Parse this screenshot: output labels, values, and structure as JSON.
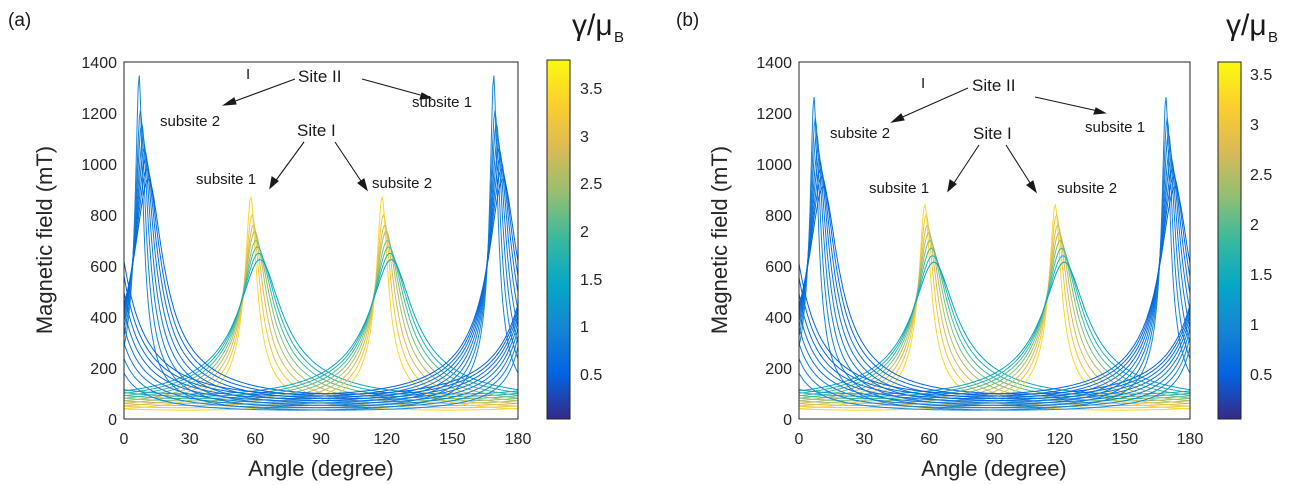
{
  "chart_data": [
    {
      "type": "line",
      "panel_label": "(a)",
      "xlabel": "Angle (degree)",
      "ylabel": "Magnetic field (mT)",
      "xlim": [
        0,
        180
      ],
      "ylim": [
        0,
        1400
      ],
      "xticks": [
        0,
        30,
        60,
        90,
        120,
        150,
        180
      ],
      "yticks": [
        0,
        200,
        400,
        600,
        800,
        1000,
        1200,
        1400
      ],
      "colorbar": {
        "title": "γ/μ",
        "subscript": "B",
        "range": [
          0.05,
          3.8
        ],
        "ticks": [
          "0.5",
          "1",
          "1.5",
          "2",
          "2.5",
          "3",
          "3.5"
        ],
        "tick_values": [
          0.5,
          1,
          1.5,
          2,
          2.5,
          3,
          3.5
        ],
        "colormap": "parula"
      },
      "families": [
        {
          "group": "Site I subsite 1",
          "peak_angle": 60,
          "peak_fields": [
            870,
            800,
            760,
            735,
            700,
            675,
            650,
            625
          ],
          "gamma_max": 3.8
        },
        {
          "group": "Site I subsite 2",
          "peak_angle": 120,
          "peak_fields": [
            870,
            800,
            760,
            735,
            700,
            675,
            650,
            625
          ],
          "gamma_max": 3.8
        },
        {
          "group": "Site II subsite 2",
          "peak_angle": 9,
          "peak_fields": [
            1350,
            1210,
            1160,
            1100,
            1060,
            1020,
            980,
            940
          ],
          "gamma_max": 0.9
        },
        {
          "group": "Site II subsite 1",
          "peak_angle": 171,
          "peak_fields": [
            1350,
            1210,
            1160,
            1100,
            1060,
            1020,
            980,
            940
          ],
          "gamma_max": 0.9
        }
      ],
      "annotations": {
        "tick_mark": "I",
        "site2": "Site II",
        "site2_sub2": "subsite 2",
        "site2_sub1": "subsite 1",
        "site1": "Site I",
        "site1_sub1": "subsite 1",
        "site1_sub2": "subsite 2"
      }
    },
    {
      "type": "line",
      "panel_label": "(b)",
      "xlabel": "Angle (degree)",
      "ylabel": "Magnetic field (mT)",
      "xlim": [
        0,
        180
      ],
      "ylim": [
        0,
        1400
      ],
      "xticks": [
        0,
        30,
        60,
        90,
        120,
        150,
        180
      ],
      "yticks": [
        0,
        200,
        400,
        600,
        800,
        1000,
        1200,
        1400
      ],
      "colorbar": {
        "title": "γ/μ",
        "subscript": "B",
        "range": [
          0.05,
          3.6
        ],
        "ticks": [
          "0.5",
          "1",
          "1.5",
          "2",
          "2.5",
          "3",
          "3.5"
        ],
        "tick_values": [
          0.5,
          1,
          1.5,
          2,
          2.5,
          3,
          3.5
        ],
        "colormap": "parula"
      },
      "families": [
        {
          "group": "Site I subsite 1",
          "peak_angle": 60,
          "peak_fields": [
            840,
            800,
            760,
            730,
            700,
            670,
            640,
            615
          ],
          "gamma_max": 3.6
        },
        {
          "group": "Site I subsite 2",
          "peak_angle": 120,
          "peak_fields": [
            840,
            800,
            760,
            730,
            700,
            670,
            640,
            615
          ],
          "gamma_max": 3.6
        },
        {
          "group": "Site II subsite 2",
          "peak_angle": 9,
          "peak_fields": [
            1265,
            1180,
            1120,
            1060,
            1020,
            980,
            950,
            910
          ],
          "gamma_max": 0.85
        },
        {
          "group": "Site II subsite 1",
          "peak_angle": 171,
          "peak_fields": [
            1265,
            1180,
            1120,
            1060,
            1020,
            980,
            950,
            910
          ],
          "gamma_max": 0.85
        }
      ],
      "annotations": {
        "tick_mark": "I",
        "site2": "Site II",
        "site2_sub2": "subsite 2",
        "site2_sub1": "subsite 1",
        "site1": "Site I",
        "site1_sub1": "subsite 1",
        "site1_sub2": "subsite 2"
      }
    }
  ]
}
